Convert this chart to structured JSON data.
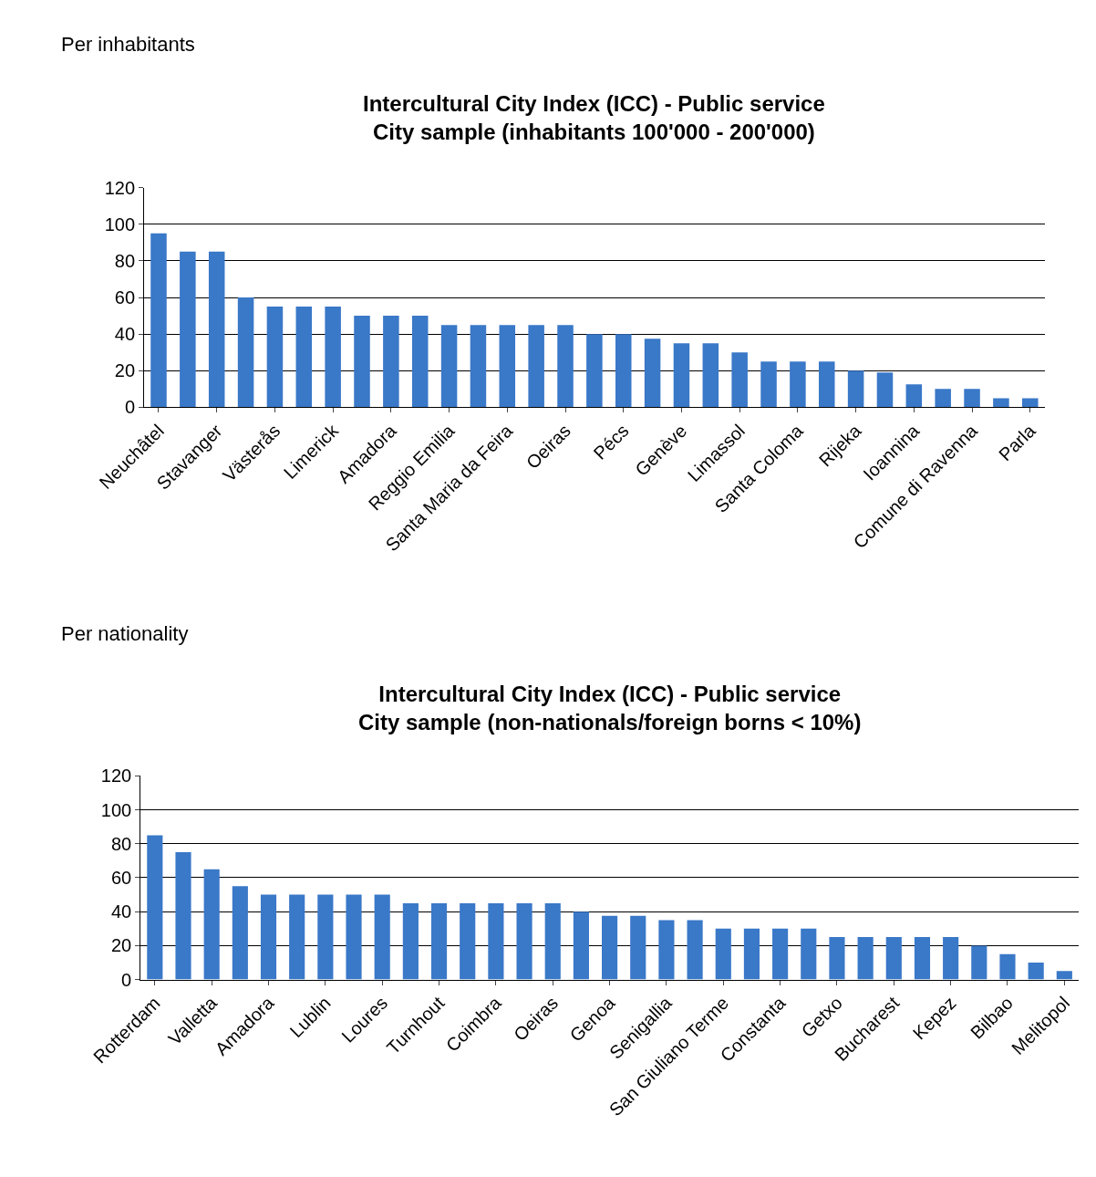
{
  "chart_data": [
    {
      "type": "bar",
      "title": "Intercultural City Index (ICC) - Public service\nCity sample (inhabitants 100'000 - 200'000)",
      "annotations": [
        "Per inhabitants"
      ],
      "categories": [
        "Neuchâtel",
        null,
        "Stavanger",
        null,
        "Västerås",
        null,
        "Limerick",
        null,
        "Amadora",
        null,
        "Reggio Emilia",
        null,
        "Santa Maria da Feira",
        null,
        "Oeiras",
        null,
        "Pécs",
        null,
        "Genève",
        null,
        "Limassol",
        null,
        "Santa Coloma",
        null,
        "Rijeka",
        null,
        "Ioannina",
        null,
        "Comune di Ravenna",
        null,
        "Parla"
      ],
      "values": [
        95,
        85,
        85,
        60,
        55,
        55,
        55,
        50,
        50,
        50,
        45,
        45,
        45,
        45,
        45,
        40,
        40,
        37.5,
        35,
        35,
        30,
        25,
        25,
        25,
        20,
        19,
        12.5,
        10,
        10,
        5,
        5
      ],
      "color": "#3a78c8",
      "ylim": [
        0,
        120
      ],
      "yticks": [
        0,
        20,
        40,
        60,
        80,
        100,
        120
      ],
      "grid": "y"
    },
    {
      "type": "bar",
      "title": "Intercultural City Index (ICC) - Public service\nCity sample (non-nationals/foreign borns < 10%)",
      "annotations": [
        "Per nationality"
      ],
      "categories": [
        "Rotterdam",
        null,
        "Valletta",
        null,
        "Amadora",
        null,
        "Lublin",
        null,
        "Loures",
        null,
        "Turnhout",
        null,
        "Coimbra",
        null,
        "Oeiras",
        null,
        "Genoa",
        null,
        "Senigallia",
        null,
        "San Giuliano Terme",
        null,
        "Constanta",
        null,
        "Getxo",
        null,
        "Bucharest",
        null,
        "Kepez",
        null,
        "Bilbao",
        null,
        "Melitopol"
      ],
      "values": [
        85,
        75,
        65,
        55,
        50,
        50,
        50,
        50,
        50,
        45,
        45,
        45,
        45,
        45,
        45,
        40,
        37.5,
        37.5,
        35,
        35,
        30,
        30,
        30,
        30,
        25,
        25,
        25,
        25,
        25,
        20,
        15,
        10,
        5
      ],
      "color": "#3a78c8",
      "ylim": [
        0,
        120
      ],
      "yticks": [
        0,
        20,
        40,
        60,
        80,
        100,
        120
      ],
      "grid": "y"
    }
  ]
}
